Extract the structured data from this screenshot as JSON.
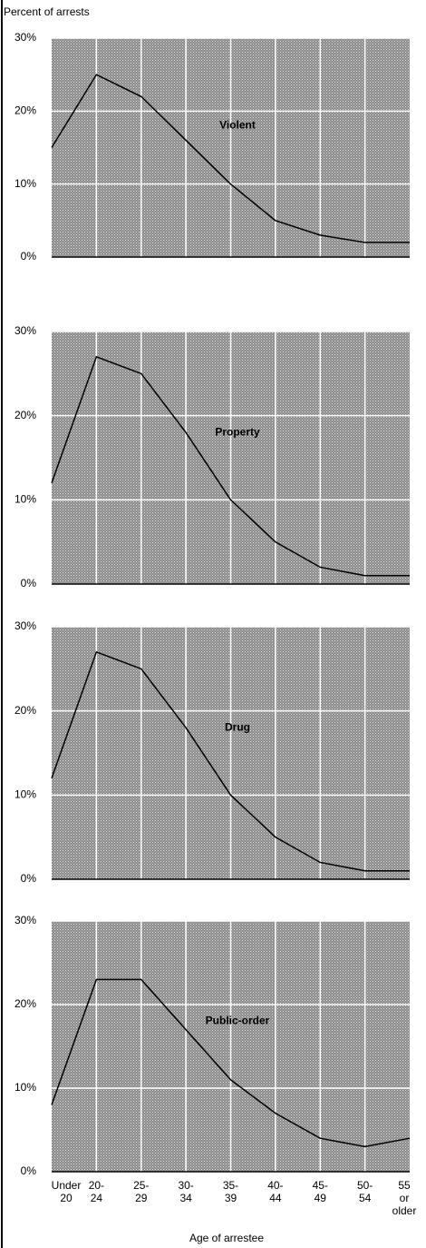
{
  "chart_data": [
    {
      "type": "line",
      "ylabel": "Percent of arrests",
      "series": [
        {
          "name": "Violent",
          "color": "#000000",
          "values": [
            15,
            25,
            22,
            16,
            10,
            5,
            3,
            2,
            2
          ]
        }
      ],
      "ylim": [
        0,
        30
      ],
      "yticks": [
        {
          "value": 0,
          "label": "0%"
        },
        {
          "value": 10,
          "label": "10%"
        },
        {
          "value": 20,
          "label": "20%"
        },
        {
          "value": 30,
          "label": "30%"
        }
      ],
      "grid": true
    },
    {
      "type": "line",
      "series": [
        {
          "name": "Property",
          "color": "#000000",
          "values": [
            12,
            27,
            25,
            18,
            10,
            5,
            2,
            1,
            1
          ]
        }
      ],
      "ylim": [
        0,
        30
      ],
      "yticks": [
        {
          "value": 0,
          "label": "0%"
        },
        {
          "value": 10,
          "label": "10%"
        },
        {
          "value": 20,
          "label": "20%"
        },
        {
          "value": 30,
          "label": "30%"
        }
      ],
      "grid": true
    },
    {
      "type": "line",
      "series": [
        {
          "name": "Drug",
          "color": "#000000",
          "values": [
            12,
            27,
            25,
            18,
            10,
            5,
            2,
            1,
            1
          ]
        }
      ],
      "ylim": [
        0,
        30
      ],
      "yticks": [
        {
          "value": 0,
          "label": "0%"
        },
        {
          "value": 10,
          "label": "10%"
        },
        {
          "value": 20,
          "label": "20%"
        },
        {
          "value": 30,
          "label": "30%"
        }
      ],
      "grid": true
    },
    {
      "type": "line",
      "xlabel": "Age of arrestee",
      "categories": [
        "Under\n20",
        "20-\n24",
        "25-\n29",
        "30-\n34",
        "35-\n39",
        "40-\n44",
        "45-\n49",
        "50-\n54",
        "55\nor\nolder"
      ],
      "series": [
        {
          "name": "Public-order",
          "color": "#000000",
          "values": [
            8,
            23,
            23,
            17,
            11,
            7,
            4,
            3,
            4
          ]
        }
      ],
      "ylim": [
        0,
        30
      ],
      "yticks": [
        {
          "value": 0,
          "label": "0%"
        },
        {
          "value": 10,
          "label": "10%"
        },
        {
          "value": 20,
          "label": "20%"
        },
        {
          "value": 30,
          "label": "30%"
        }
      ],
      "grid": true
    }
  ]
}
